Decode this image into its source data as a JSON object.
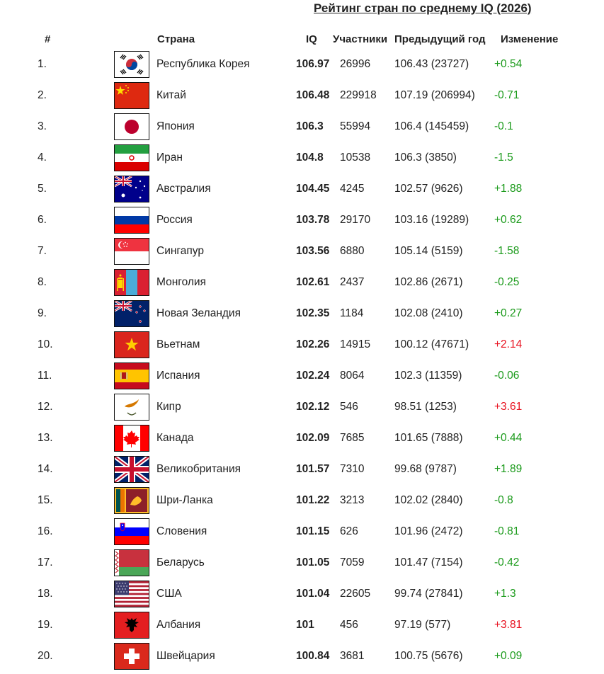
{
  "title": "Рейтинг стран по среднему IQ (2026)",
  "columns": {
    "rank": "#",
    "country": "Страна",
    "iq": "IQ",
    "participants": "Участники",
    "previous_year": "Предыдущий год",
    "change": "Изменение"
  },
  "colors": {
    "change_green": "#1a9a1a",
    "change_red": "#e8101e"
  },
  "rows": [
    {
      "rank": "1.",
      "flag": "south-korea-flag-icon",
      "country": "Республика Корея",
      "iq": "106.97",
      "participants": "26996",
      "previous": "106.43 (23727)",
      "change": "+0.54",
      "change_color": "green"
    },
    {
      "rank": "2.",
      "flag": "china-flag-icon",
      "country": "Китай",
      "iq": "106.48",
      "participants": "229918",
      "previous": "107.19 (206994)",
      "change": "-0.71",
      "change_color": "green"
    },
    {
      "rank": "3.",
      "flag": "japan-flag-icon",
      "country": "Япония",
      "iq": "106.3",
      "participants": "55994",
      "previous": "106.4 (145459)",
      "change": "-0.1",
      "change_color": "green"
    },
    {
      "rank": "4.",
      "flag": "iran-flag-icon",
      "country": "Иран",
      "iq": "104.8",
      "participants": "10538",
      "previous": "106.3 (3850)",
      "change": "-1.5",
      "change_color": "green"
    },
    {
      "rank": "5.",
      "flag": "australia-flag-icon",
      "country": "Австралия",
      "iq": "104.45",
      "participants": "4245",
      "previous": "102.57 (9626)",
      "change": "+1.88",
      "change_color": "green"
    },
    {
      "rank": "6.",
      "flag": "russia-flag-icon",
      "country": "Россия",
      "iq": "103.78",
      "participants": "29170",
      "previous": "103.16 (19289)",
      "change": "+0.62",
      "change_color": "green"
    },
    {
      "rank": "7.",
      "flag": "singapore-flag-icon",
      "country": "Сингапур",
      "iq": "103.56",
      "participants": "6880",
      "previous": "105.14 (5159)",
      "change": "-1.58",
      "change_color": "green"
    },
    {
      "rank": "8.",
      "flag": "mongolia-flag-icon",
      "country": "Монголия",
      "iq": "102.61",
      "participants": "2437",
      "previous": "102.86 (2671)",
      "change": "-0.25",
      "change_color": "green"
    },
    {
      "rank": "9.",
      "flag": "new-zealand-flag-icon",
      "country": "Новая Зеландия",
      "iq": "102.35",
      "participants": "1184",
      "previous": "102.08 (2410)",
      "change": "+0.27",
      "change_color": "green"
    },
    {
      "rank": "10.",
      "flag": "vietnam-flag-icon",
      "country": "Вьетнам",
      "iq": "102.26",
      "participants": "14915",
      "previous": "100.12 (47671)",
      "change": "+2.14",
      "change_color": "red"
    },
    {
      "rank": "11.",
      "flag": "spain-flag-icon",
      "country": "Испания",
      "iq": "102.24",
      "participants": "8064",
      "previous": "102.3 (11359)",
      "change": "-0.06",
      "change_color": "green"
    },
    {
      "rank": "12.",
      "flag": "cyprus-flag-icon",
      "country": "Кипр",
      "iq": "102.12",
      "participants": "546",
      "previous": "98.51 (1253)",
      "change": "+3.61",
      "change_color": "red"
    },
    {
      "rank": "13.",
      "flag": "canada-flag-icon",
      "country": "Канада",
      "iq": "102.09",
      "participants": "7685",
      "previous": "101.65 (7888)",
      "change": "+0.44",
      "change_color": "green"
    },
    {
      "rank": "14.",
      "flag": "uk-flag-icon",
      "country": "Великобритания",
      "iq": "101.57",
      "participants": "7310",
      "previous": "99.68 (9787)",
      "change": "+1.89",
      "change_color": "green"
    },
    {
      "rank": "15.",
      "flag": "sri-lanka-flag-icon",
      "country": "Шри-Ланка",
      "iq": "101.22",
      "participants": "3213",
      "previous": "102.02 (2840)",
      "change": "-0.8",
      "change_color": "green"
    },
    {
      "rank": "16.",
      "flag": "slovenia-flag-icon",
      "country": "Словения",
      "iq": "101.15",
      "participants": "626",
      "previous": "101.96 (2472)",
      "change": "-0.81",
      "change_color": "green"
    },
    {
      "rank": "17.",
      "flag": "belarus-flag-icon",
      "country": "Беларусь",
      "iq": "101.05",
      "participants": "7059",
      "previous": "101.47 (7154)",
      "change": "-0.42",
      "change_color": "green"
    },
    {
      "rank": "18.",
      "flag": "usa-flag-icon",
      "country": "США",
      "iq": "101.04",
      "participants": "22605",
      "previous": "99.74 (27841)",
      "change": "+1.3",
      "change_color": "green"
    },
    {
      "rank": "19.",
      "flag": "albania-flag-icon",
      "country": "Албания",
      "iq": "101",
      "participants": "456",
      "previous": "97.19 (577)",
      "change": "+3.81",
      "change_color": "red"
    },
    {
      "rank": "20.",
      "flag": "switzerland-flag-icon",
      "country": "Швейцария",
      "iq": "100.84",
      "participants": "3681",
      "previous": "100.75 (5676)",
      "change": "+0.09",
      "change_color": "green"
    }
  ]
}
